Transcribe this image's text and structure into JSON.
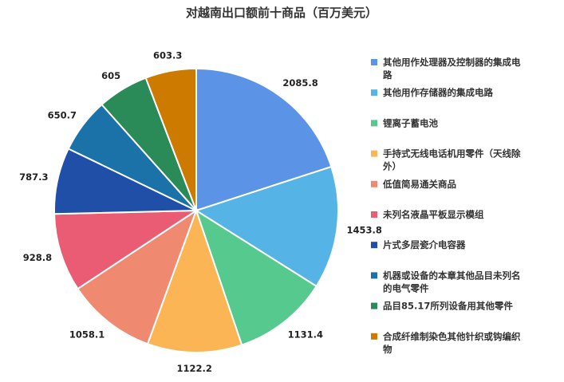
{
  "chart_data": {
    "type": "pie",
    "title": "对越南出口额前十商品（百万美元）",
    "legend_position": "right",
    "start_angle_deg": 0,
    "direction": "clockwise",
    "slices": [
      {
        "label": "其他用作处理器及控制器的集成电路",
        "legend_lines": [
          "其他用作处理器及控制器的集成电",
          "路"
        ],
        "value": 2085.8,
        "value_label": "2085.8",
        "color": "#5b94e6"
      },
      {
        "label": "其他用作存储器的集成电路",
        "legend_lines": [
          "其他用作存储器的集成电路"
        ],
        "value": 1453.8,
        "value_label": "1453.8",
        "color": "#55b3e6"
      },
      {
        "label": "锂离子蓄电池",
        "legend_lines": [
          "锂离子蓄电池"
        ],
        "value": 1131.4,
        "value_label": "1131.4",
        "color": "#56c98e"
      },
      {
        "label": "手持式无线电话机用零件（天线除外）",
        "legend_lines": [
          "手持式无线电话机用零件（天线除",
          "外）"
        ],
        "value": 1122.2,
        "value_label": "1122.2",
        "color": "#fbb554"
      },
      {
        "label": "低值简易通关商品",
        "legend_lines": [
          "低值简易通关商品"
        ],
        "value": 1058.1,
        "value_label": "1058.1",
        "color": "#ef8a70"
      },
      {
        "label": "未列名液晶平板显示模组",
        "legend_lines": [
          "未列名液晶平板显示模组"
        ],
        "value": 928.8,
        "value_label": "928.8",
        "color": "#e95c73"
      },
      {
        "label": "片式多层瓷介电容器",
        "legend_lines": [
          "片式多层瓷介电容器"
        ],
        "value": 787.3,
        "value_label": "787.3",
        "color": "#1f4fa6"
      },
      {
        "label": "机器或设备的本章其他品目未列名的电气零件",
        "legend_lines": [
          "机器或设备的本章其他品目未列名",
          "的电气零件"
        ],
        "value": 650.7,
        "value_label": "650.7",
        "color": "#1a72a8"
      },
      {
        "label": "品目85.17所列设备用其他零件",
        "legend_lines": [
          "品目85.17所列设备用其他零件"
        ],
        "value": 605,
        "value_label": "605",
        "color": "#2a8a58"
      },
      {
        "label": "合成纤维制染色其他针织或钩编织物",
        "legend_lines": [
          "合成纤维制染色其他针织或钩编织",
          "物"
        ],
        "value": 603.3,
        "value_label": "603.3",
        "color": "#cc7a00"
      }
    ]
  }
}
